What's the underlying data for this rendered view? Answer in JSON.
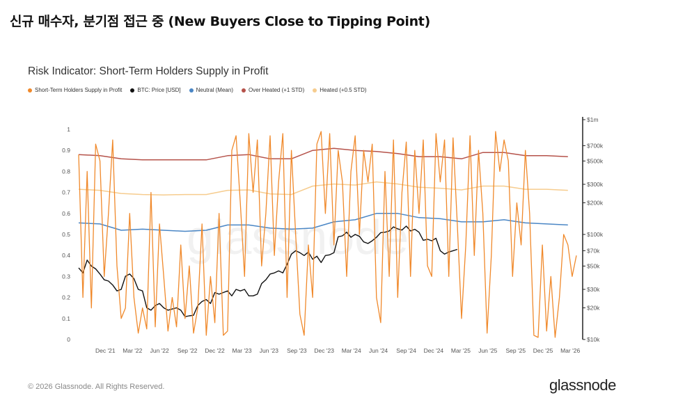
{
  "page_title": "신규 매수자, 분기점 접근 중 (New Buyers Close to Tipping Point)",
  "footer": {
    "copyright": "© 2026 Glassnode. All Rights Reserved.",
    "brand": "glassnode"
  },
  "watermark": "glassnode",
  "colors": {
    "sth": "#f0892b",
    "btc": "#111111",
    "neutral": "#4a86c5",
    "overheated": "#b5524a",
    "heated": "#f6cc8e"
  },
  "chart_data": {
    "type": "line",
    "title": "Risk Indicator: Short-Term Holders Supply in Profit",
    "legend": [
      "Short-Term Holders Supply in Profit",
      "BTC: Price [USD]",
      "Neutral (Mean)",
      "Over Heated (+1 STD)",
      "Heated (+0.5 STD)"
    ],
    "x_ticks": [
      "Dec '21",
      "Mar '22",
      "Jun '22",
      "Sep '22",
      "Dec '22",
      "Mar '23",
      "Jun '23",
      "Sep '23",
      "Dec '23",
      "Mar '24",
      "Jun '24",
      "Sep '24",
      "Dec '24",
      "Mar '25",
      "Jun '25",
      "Sep '25",
      "Dec '25",
      "Mar '26"
    ],
    "x_range": [
      "Sep '21",
      "Apr '26"
    ],
    "y_left": {
      "ticks": [
        "0",
        "0.1",
        "0.2",
        "0.3",
        "0.4",
        "0.5",
        "0.6",
        "0.7",
        "0.8",
        "0.9",
        "1"
      ],
      "range": [
        0,
        1
      ]
    },
    "y_right": {
      "scale": "log",
      "ticks": [
        "$10k",
        "$20k",
        "$30k",
        "$50k",
        "$70k",
        "$100k",
        "$200k",
        "$300k",
        "$500k",
        "$700k",
        "$1m"
      ],
      "range": [
        10000,
        1000000
      ]
    },
    "series": [
      {
        "name": "Short-Term Holders Supply in Profit",
        "axis": "left",
        "points": [
          [
            0,
            0.88
          ],
          [
            2,
            0.2
          ],
          [
            4,
            0.8
          ],
          [
            6,
            0.15
          ],
          [
            8,
            0.93
          ],
          [
            10,
            0.85
          ],
          [
            12,
            0.3
          ],
          [
            14,
            0.6
          ],
          [
            16,
            0.95
          ],
          [
            18,
            0.35
          ],
          [
            20,
            0.1
          ],
          [
            22,
            0.15
          ],
          [
            24,
            0.6
          ],
          [
            26,
            0.2
          ],
          [
            28,
            0.03
          ],
          [
            30,
            0.15
          ],
          [
            32,
            0.05
          ],
          [
            34,
            0.7
          ],
          [
            36,
            0.06
          ],
          [
            38,
            0.55
          ],
          [
            40,
            0.3
          ],
          [
            42,
            0.04
          ],
          [
            44,
            0.2
          ],
          [
            46,
            0.06
          ],
          [
            48,
            0.45
          ],
          [
            50,
            0.1
          ],
          [
            52,
            0.35
          ],
          [
            54,
            0.03
          ],
          [
            56,
            0.15
          ],
          [
            58,
            0.55
          ],
          [
            60,
            0.02
          ],
          [
            62,
            0.3
          ],
          [
            64,
            0.08
          ],
          [
            66,
            0.6
          ],
          [
            68,
            0.02
          ],
          [
            70,
            0.04
          ],
          [
            72,
            0.9
          ],
          [
            74,
            0.97
          ],
          [
            76,
            0.65
          ],
          [
            78,
            0.3
          ],
          [
            80,
            0.98
          ],
          [
            82,
            0.7
          ],
          [
            84,
            0.95
          ],
          [
            86,
            0.35
          ],
          [
            88,
            0.6
          ],
          [
            90,
            0.97
          ],
          [
            92,
            0.4
          ],
          [
            94,
            0.75
          ],
          [
            96,
            0.98
          ],
          [
            98,
            0.2
          ],
          [
            100,
            0.9
          ],
          [
            102,
            0.5
          ],
          [
            104,
            0.12
          ],
          [
            106,
            0.02
          ],
          [
            108,
            0.45
          ],
          [
            110,
            0.2
          ],
          [
            112,
            0.93
          ],
          [
            114,
            0.99
          ],
          [
            116,
            0.6
          ],
          [
            118,
            0.98
          ],
          [
            120,
            0.45
          ],
          [
            122,
            0.9
          ],
          [
            124,
            0.75
          ],
          [
            126,
            0.3
          ],
          [
            128,
            0.8
          ],
          [
            130,
            0.97
          ],
          [
            132,
            0.5
          ],
          [
            134,
            0.9
          ],
          [
            136,
            0.75
          ],
          [
            138,
            0.93
          ],
          [
            140,
            0.2
          ],
          [
            142,
            0.08
          ],
          [
            144,
            0.8
          ],
          [
            146,
            0.3
          ],
          [
            148,
            0.95
          ],
          [
            150,
            0.2
          ],
          [
            152,
            0.7
          ],
          [
            154,
            0.94
          ],
          [
            156,
            0.3
          ],
          [
            158,
            0.9
          ],
          [
            160,
            0.6
          ],
          [
            162,
            0.95
          ],
          [
            164,
            0.35
          ],
          [
            166,
            0.3
          ],
          [
            168,
            0.98
          ],
          [
            170,
            0.75
          ],
          [
            172,
            0.95
          ],
          [
            174,
            0.3
          ],
          [
            176,
            0.96
          ],
          [
            178,
            0.55
          ],
          [
            180,
            0.1
          ],
          [
            182,
            0.45
          ],
          [
            184,
            0.97
          ],
          [
            186,
            0.4
          ],
          [
            188,
            0.9
          ],
          [
            190,
            0.6
          ],
          [
            192,
            0.03
          ],
          [
            194,
            0.4
          ],
          [
            196,
            0.99
          ],
          [
            198,
            0.8
          ],
          [
            200,
            0.95
          ],
          [
            202,
            0.85
          ],
          [
            204,
            0.3
          ],
          [
            206,
            0.65
          ],
          [
            208,
            0.45
          ],
          [
            210,
            0.9
          ],
          [
            212,
            0.6
          ],
          [
            214,
            0.02
          ],
          [
            216,
            0.01
          ],
          [
            218,
            0.45
          ],
          [
            220,
            0.04
          ],
          [
            222,
            0.3
          ],
          [
            224,
            0.01
          ],
          [
            226,
            0.2
          ],
          [
            228,
            0.5
          ],
          [
            230,
            0.45
          ],
          [
            232,
            0.3
          ],
          [
            234,
            0.4
          ]
        ]
      },
      {
        "name": "BTC: Price [USD]",
        "axis": "right",
        "points": [
          [
            0,
            48000
          ],
          [
            2,
            43000
          ],
          [
            4,
            57000
          ],
          [
            6,
            50000
          ],
          [
            8,
            47000
          ],
          [
            10,
            42000
          ],
          [
            12,
            37000
          ],
          [
            14,
            36000
          ],
          [
            16,
            33000
          ],
          [
            18,
            29000
          ],
          [
            20,
            30000
          ],
          [
            22,
            40000
          ],
          [
            24,
            42000
          ],
          [
            26,
            38000
          ],
          [
            28,
            30000
          ],
          [
            30,
            29000
          ],
          [
            32,
            20000
          ],
          [
            34,
            19000
          ],
          [
            36,
            21000
          ],
          [
            38,
            22000
          ],
          [
            40,
            20000
          ],
          [
            42,
            19000
          ],
          [
            44,
            19500
          ],
          [
            46,
            20000
          ],
          [
            48,
            19000
          ],
          [
            50,
            16500
          ],
          [
            52,
            16800
          ],
          [
            54,
            17000
          ],
          [
            56,
            21000
          ],
          [
            58,
            23000
          ],
          [
            60,
            24000
          ],
          [
            62,
            22000
          ],
          [
            64,
            28000
          ],
          [
            66,
            27000
          ],
          [
            68,
            28000
          ],
          [
            70,
            29000
          ],
          [
            72,
            26000
          ],
          [
            74,
            30000
          ],
          [
            76,
            29000
          ],
          [
            78,
            30000
          ],
          [
            80,
            26000
          ],
          [
            82,
            26000
          ],
          [
            84,
            27000
          ],
          [
            86,
            34000
          ],
          [
            88,
            37000
          ],
          [
            90,
            42000
          ],
          [
            92,
            43000
          ],
          [
            94,
            45000
          ],
          [
            96,
            43000
          ],
          [
            98,
            52000
          ],
          [
            100,
            65000
          ],
          [
            102,
            70000
          ],
          [
            104,
            67000
          ],
          [
            106,
            63000
          ],
          [
            108,
            68000
          ],
          [
            110,
            58000
          ],
          [
            112,
            62000
          ],
          [
            114,
            54000
          ],
          [
            116,
            63000
          ],
          [
            118,
            64000
          ],
          [
            120,
            67000
          ],
          [
            122,
            95000
          ],
          [
            124,
            97000
          ],
          [
            126,
            105000
          ],
          [
            128,
            94000
          ],
          [
            130,
            100000
          ],
          [
            132,
            96000
          ],
          [
            134,
            85000
          ],
          [
            136,
            82000
          ],
          [
            138,
            87000
          ],
          [
            140,
            94000
          ],
          [
            142,
            104000
          ],
          [
            144,
            105000
          ],
          [
            146,
            108000
          ],
          [
            148,
            118000
          ],
          [
            150,
            113000
          ],
          [
            152,
            110000
          ],
          [
            154,
            120000
          ],
          [
            156,
            108000
          ],
          [
            158,
            112000
          ],
          [
            160,
            105000
          ],
          [
            162,
            88000
          ],
          [
            164,
            90000
          ],
          [
            166,
            87000
          ],
          [
            168,
            92000
          ],
          [
            170,
            70000
          ],
          [
            172,
            65000
          ],
          [
            174,
            68000
          ],
          [
            176,
            70000
          ],
          [
            178,
            72000
          ]
        ]
      },
      {
        "name": "Neutral (Mean)",
        "axis": "left",
        "points": [
          [
            0,
            0.555
          ],
          [
            10,
            0.55
          ],
          [
            20,
            0.52
          ],
          [
            30,
            0.525
          ],
          [
            40,
            0.52
          ],
          [
            50,
            0.515
          ],
          [
            60,
            0.52
          ],
          [
            70,
            0.545
          ],
          [
            80,
            0.545
          ],
          [
            90,
            0.53
          ],
          [
            100,
            0.525
          ],
          [
            110,
            0.53
          ],
          [
            120,
            0.56
          ],
          [
            130,
            0.57
          ],
          [
            140,
            0.6
          ],
          [
            150,
            0.6
          ],
          [
            160,
            0.58
          ],
          [
            170,
            0.575
          ],
          [
            180,
            0.56
          ],
          [
            190,
            0.56
          ],
          [
            200,
            0.57
          ],
          [
            210,
            0.555
          ],
          [
            220,
            0.55
          ],
          [
            230,
            0.545
          ]
        ]
      },
      {
        "name": "Over Heated (+1 STD)",
        "axis": "left",
        "points": [
          [
            0,
            0.88
          ],
          [
            10,
            0.875
          ],
          [
            20,
            0.86
          ],
          [
            30,
            0.855
          ],
          [
            40,
            0.855
          ],
          [
            50,
            0.855
          ],
          [
            60,
            0.855
          ],
          [
            70,
            0.875
          ],
          [
            80,
            0.88
          ],
          [
            90,
            0.86
          ],
          [
            100,
            0.86
          ],
          [
            110,
            0.9
          ],
          [
            120,
            0.91
          ],
          [
            130,
            0.9
          ],
          [
            140,
            0.895
          ],
          [
            150,
            0.885
          ],
          [
            160,
            0.87
          ],
          [
            170,
            0.87
          ],
          [
            180,
            0.86
          ],
          [
            190,
            0.89
          ],
          [
            200,
            0.89
          ],
          [
            210,
            0.875
          ],
          [
            220,
            0.875
          ],
          [
            230,
            0.87
          ]
        ]
      },
      {
        "name": "Heated (+0.5 STD)",
        "axis": "left",
        "points": [
          [
            0,
            0.715
          ],
          [
            10,
            0.71
          ],
          [
            20,
            0.695
          ],
          [
            30,
            0.69
          ],
          [
            40,
            0.688
          ],
          [
            50,
            0.69
          ],
          [
            60,
            0.69
          ],
          [
            70,
            0.71
          ],
          [
            80,
            0.712
          ],
          [
            90,
            0.693
          ],
          [
            100,
            0.69
          ],
          [
            110,
            0.73
          ],
          [
            120,
            0.74
          ],
          [
            130,
            0.735
          ],
          [
            140,
            0.75
          ],
          [
            150,
            0.74
          ],
          [
            160,
            0.725
          ],
          [
            170,
            0.72
          ],
          [
            180,
            0.712
          ],
          [
            190,
            0.73
          ],
          [
            200,
            0.73
          ],
          [
            210,
            0.715
          ],
          [
            220,
            0.715
          ],
          [
            230,
            0.71
          ]
        ]
      }
    ]
  }
}
